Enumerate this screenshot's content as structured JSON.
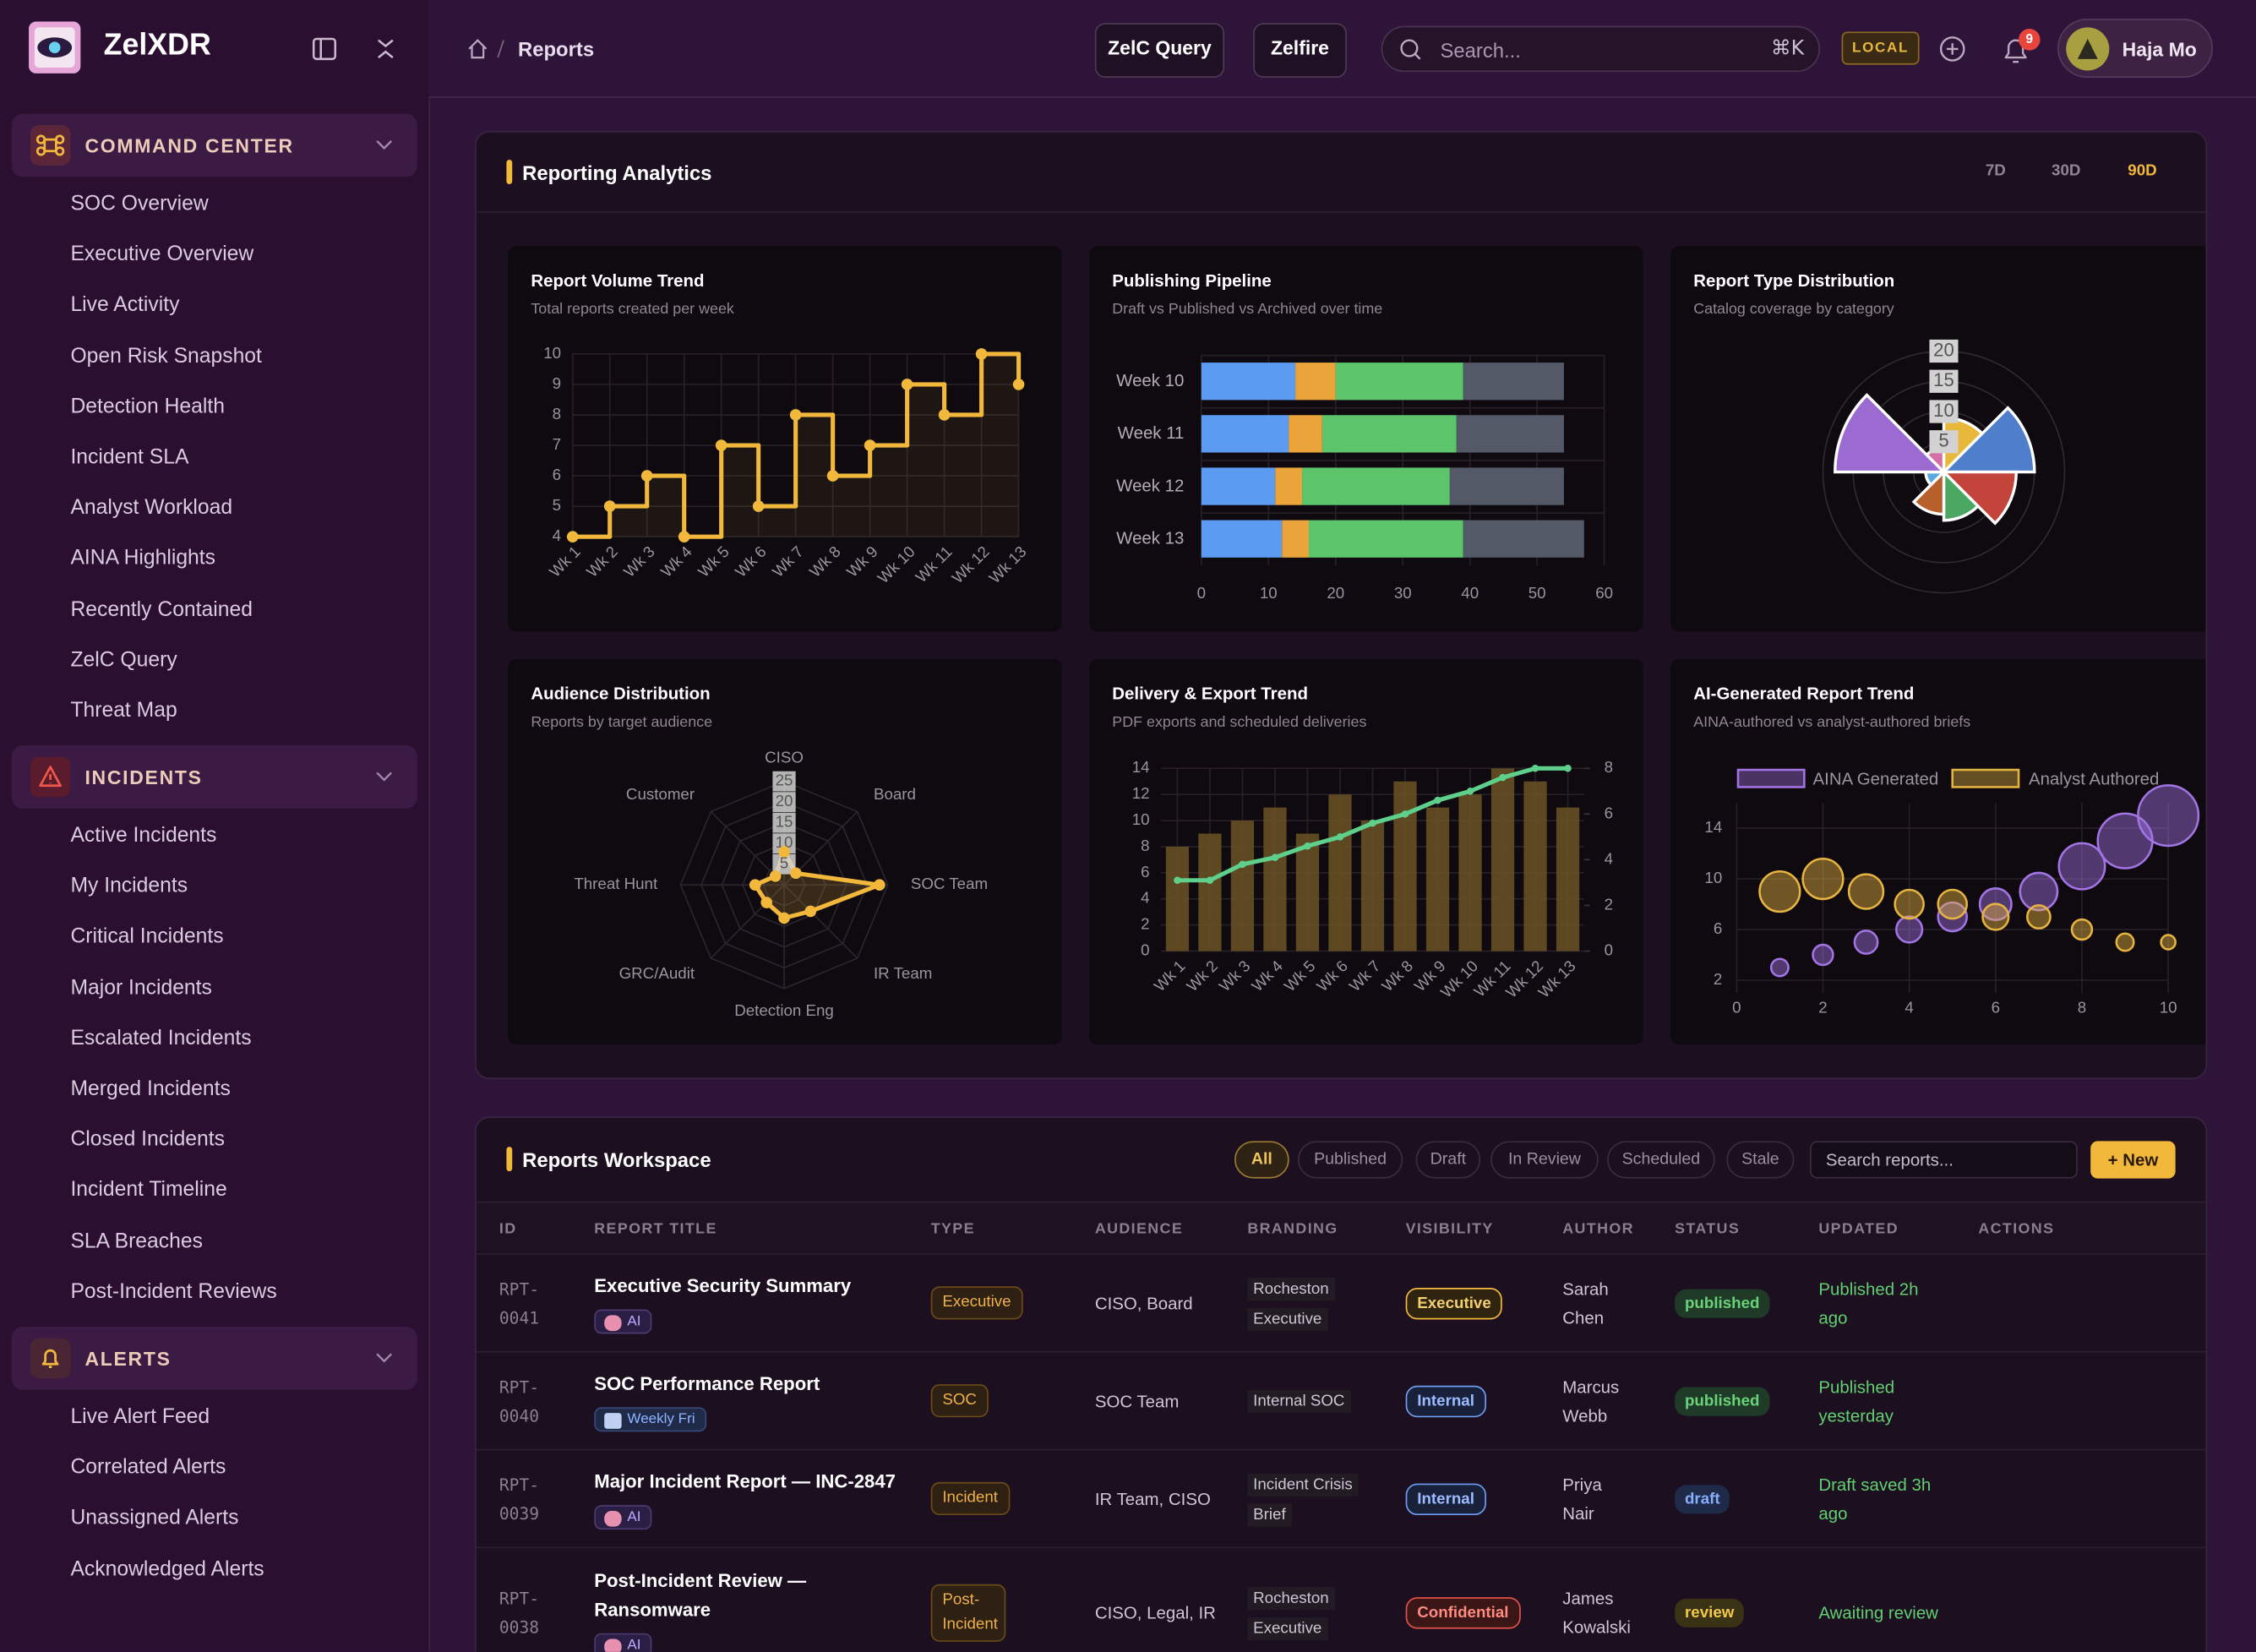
{
  "sidebar": {
    "brand": "ZelXDR",
    "sections": [
      {
        "title": "COMMAND CENTER",
        "items": [
          "SOC Overview",
          "Executive Overview",
          "Live Activity",
          "Open Risk Snapshot",
          "Detection Health",
          "Incident SLA",
          "Analyst Workload",
          "AINA Highlights",
          "Recently Contained",
          "ZelC Query",
          "Threat Map"
        ]
      },
      {
        "title": "INCIDENTS",
        "items": [
          "Active Incidents",
          "My Incidents",
          "Critical Incidents",
          "Major Incidents",
          "Escalated Incidents",
          "Merged Incidents",
          "Closed Incidents",
          "Incident Timeline",
          "SLA Breaches",
          "Post-Incident Reviews"
        ]
      },
      {
        "title": "ALERTS",
        "items": [
          "Live Alert Feed",
          "Correlated Alerts",
          "Unassigned Alerts",
          "Acknowledged Alerts"
        ]
      }
    ]
  },
  "topbar": {
    "breadcrumb": "Reports",
    "buttons": [
      "ZelC Query",
      "Zelfire"
    ],
    "search": "Search...",
    "shortcut": "⌘K",
    "env": "LOCAL",
    "notifications": 9,
    "user": "Haja Mo"
  },
  "analytics": {
    "title": "Reporting Analytics",
    "ranges": [
      "7D",
      "30D",
      "90D"
    ],
    "active_range": 2,
    "charts": [
      {
        "type": "line",
        "stepped": true,
        "title": "Report Volume Trend",
        "subtitle": "Total reports created per week",
        "categories": [
          "Wk 1",
          "Wk 2",
          "Wk 3",
          "Wk 4",
          "Wk 5",
          "Wk 6",
          "Wk 7",
          "Wk 8",
          "Wk 9",
          "Wk 10",
          "Wk 11",
          "Wk 12",
          "Wk 13"
        ],
        "values": [
          4,
          5,
          6,
          4,
          7,
          5,
          8,
          6,
          7,
          9,
          8,
          10,
          9
        ],
        "color": "#f2b83c",
        "ylim": [
          4,
          10
        ],
        "yticks": [
          4,
          5,
          6,
          7,
          8,
          9,
          10
        ],
        "grid": true
      },
      {
        "type": "bar",
        "orientation": "horizontal",
        "stacked": true,
        "title": "Publishing Pipeline",
        "subtitle": "Draft vs Published vs Archived over time",
        "categories": [
          "Week 10",
          "Week 11",
          "Week 12",
          "Week 13"
        ],
        "series": [
          {
            "color": "#5b9cf2",
            "values": [
              14,
              13,
              11,
              12
            ]
          },
          {
            "color": "#eaa43a",
            "values": [
              6,
              5,
              4,
              4
            ]
          },
          {
            "color": "#5cc46b",
            "values": [
              19,
              20,
              22,
              23
            ]
          },
          {
            "color": "#535966",
            "values": [
              15,
              16,
              17,
              18
            ]
          }
        ],
        "xlim": [
          0,
          60
        ],
        "xticks": [
          0,
          10,
          20,
          30,
          40,
          50,
          60
        ],
        "grid": true
      },
      {
        "type": "polarArea",
        "title": "Report Type Distribution",
        "subtitle": "Catalog coverage by category",
        "values": [
          9,
          15,
          12,
          8,
          7,
          3,
          18,
          4
        ],
        "colors": [
          "#e8b83a",
          "#4f7fcb",
          "#c2443a",
          "#4aa862",
          "#b8602c",
          "#5aa8e0",
          "#9b6bd2",
          "#d46fa8"
        ],
        "rlim": [
          0,
          20
        ],
        "rticks": [
          5,
          10,
          15,
          20
        ]
      },
      {
        "type": "radar",
        "title": "Audience Distribution",
        "subtitle": "Reports by target audience",
        "categories": [
          "CISO",
          "Board",
          "SOC Team",
          "IR Team",
          "Detection Eng",
          "GRC/Audit",
          "Threat Hunt",
          "Customer"
        ],
        "values": [
          8,
          4,
          23,
          9,
          8,
          6,
          7,
          3
        ],
        "color": "#f2b83c",
        "rlim": [
          0,
          25
        ],
        "rticks": [
          5,
          10,
          15,
          20,
          25
        ]
      },
      {
        "type": "combo",
        "title": "Delivery & Export Trend",
        "subtitle": "PDF exports and scheduled deliveries",
        "categories": [
          "Wk 1",
          "Wk 2",
          "Wk 3",
          "Wk 4",
          "Wk 5",
          "Wk 6",
          "Wk 7",
          "Wk 8",
          "Wk 9",
          "Wk 10",
          "Wk 11",
          "Wk 12",
          "Wk 13"
        ],
        "series": [
          {
            "kind": "bar",
            "color": "#6b5424",
            "values": [
              8,
              9,
              10,
              11,
              9,
              12,
              10,
              13,
              11,
              12,
              14,
              13,
              11
            ]
          },
          {
            "kind": "line",
            "axis": "y2",
            "color": "#5fd08c",
            "values": [
              3.1,
              3.1,
              3.8,
              4.1,
              4.6,
              5,
              5.6,
              6,
              6.6,
              7,
              7.6,
              8,
              8
            ]
          }
        ],
        "ylim": [
          0,
          14
        ],
        "yticks": [
          0,
          2,
          4,
          6,
          8,
          10,
          12,
          14
        ],
        "y2lim": [
          0,
          8
        ],
        "y2ticks": [
          0,
          2,
          4,
          6,
          8
        ],
        "grid": true
      },
      {
        "type": "bubble",
        "title": "AI-Generated Report Trend",
        "subtitle": "AINA-authored vs analyst-authored briefs",
        "x": [
          1,
          2,
          3,
          4,
          5,
          6,
          7,
          8,
          9,
          10
        ],
        "series": [
          {
            "name": "AINA Generated",
            "color": "#a274e4",
            "values": [
              3,
              4,
              5,
              6,
              7,
              8,
              9,
              11,
              13,
              15
            ],
            "sizes": [
              6,
              7,
              8,
              9,
              10,
              11,
              13,
              16,
              19,
              21
            ]
          },
          {
            "name": "Analyst Authored",
            "color": "#e6b440",
            "values": [
              9,
              10,
              9,
              8,
              8,
              7,
              7,
              6,
              5,
              5
            ],
            "sizes": [
              14,
              14,
              12,
              10,
              10,
              9,
              8,
              7,
              6,
              5
            ]
          }
        ],
        "xlim": [
          0,
          10
        ],
        "xticks": [
          0,
          2,
          4,
          6,
          8,
          10
        ],
        "ylim": [
          1,
          16
        ],
        "yticks": [
          2,
          6,
          10,
          14
        ],
        "grid": true,
        "legend": "top"
      }
    ]
  },
  "workspace": {
    "title": "Reports Workspace",
    "filters": [
      "All",
      "Published",
      "Draft",
      "In Review",
      "Scheduled",
      "Stale"
    ],
    "active_filter": 0,
    "search": "Search reports...",
    "new_button": "+ New",
    "columns": [
      "ID",
      "REPORT TITLE",
      "TYPE",
      "AUDIENCE",
      "BRANDING",
      "VISIBILITY",
      "AUTHOR",
      "STATUS",
      "UPDATED",
      "ACTIONS"
    ],
    "rows": [
      {
        "id": "RPT-0041",
        "title": "Executive Security Summary",
        "tag": "AI",
        "type": "Executive",
        "audience": "CISO, Board",
        "branding": "Rocheston Executive",
        "visibility": "Executive",
        "author": "Sarah Chen",
        "status": "published",
        "updated": "Published 2h ago"
      },
      {
        "id": "RPT-0040",
        "title": "SOC Performance Report",
        "tag": "Weekly Fri",
        "type": "SOC",
        "audience": "SOC Team",
        "branding": "Internal SOC",
        "visibility": "Internal",
        "author": "Marcus Webb",
        "status": "published",
        "updated": "Published yesterday"
      },
      {
        "id": "RPT-0039",
        "title": "Major Incident Report — INC-2847",
        "tag": "AI",
        "type": "Incident",
        "audience": "IR Team, CISO",
        "branding": "Incident Crisis Brief",
        "visibility": "Internal",
        "author": "Priya Nair",
        "status": "draft",
        "updated": "Draft saved 3h ago"
      },
      {
        "id": "RPT-0038",
        "title": "Post-Incident Review — Ransomware",
        "tag": "AI",
        "type": "Post-Incident",
        "audience": "CISO, Legal, IR",
        "branding": "Rocheston Executive",
        "visibility": "Confidential",
        "author": "James Kowalski",
        "status": "review",
        "updated": "Awaiting review"
      }
    ]
  }
}
